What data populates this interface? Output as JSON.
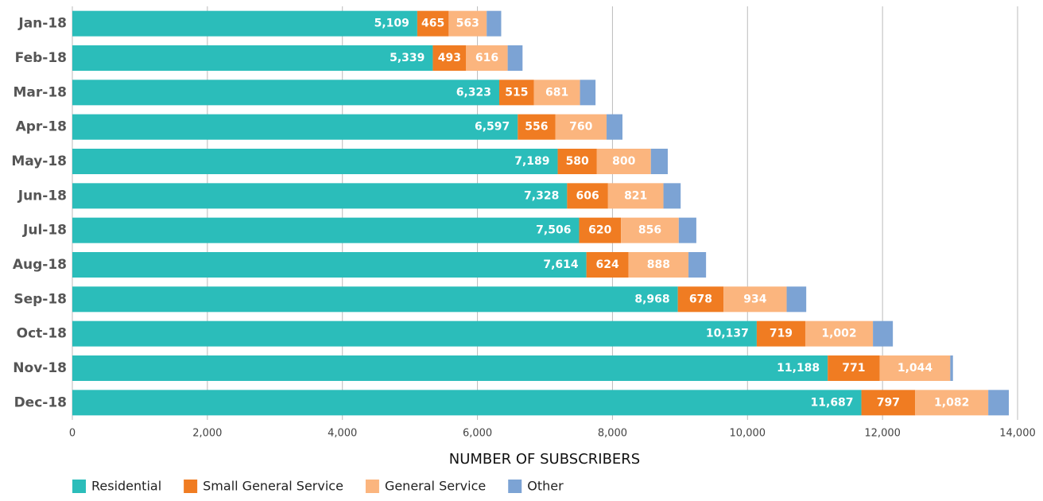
{
  "chart_data": {
    "type": "stacked_barh",
    "categories": [
      "Jan-18",
      "Feb-18",
      "Mar-18",
      "Apr-18",
      "May-18",
      "Jun-18",
      "Jul-18",
      "Aug-18",
      "Sep-18",
      "Oct-18",
      "Nov-18",
      "Dec-18"
    ],
    "series": [
      {
        "name": "Residential",
        "color": "#2bbdba",
        "values": [
          5109,
          5339,
          6323,
          6597,
          7189,
          7328,
          7506,
          7614,
          8968,
          10137,
          11188,
          11687
        ],
        "value_labels": [
          "5,109",
          "5,339",
          "6,323",
          "6,597",
          "7,189",
          "7,328",
          "7,506",
          "7,614",
          "8,968",
          "10,137",
          "11,188",
          "11,687"
        ]
      },
      {
        "name": "Small General Service",
        "color": "#f07c22",
        "values": [
          465,
          493,
          515,
          556,
          580,
          606,
          620,
          624,
          678,
          719,
          771,
          797
        ]
      },
      {
        "name": "General Service",
        "color": "#fbb57e",
        "values": [
          563,
          616,
          681,
          760,
          800,
          821,
          856,
          888,
          934,
          1002,
          1044,
          1082
        ],
        "value_labels": [
          "563",
          "616",
          "681",
          "760",
          "800",
          "821",
          "856",
          "888",
          "934",
          "1,002",
          "1,044",
          "1,082"
        ]
      },
      {
        "name": "Other",
        "color": "#7ca3d4",
        "values": [
          215,
          220,
          230,
          235,
          250,
          255,
          260,
          260,
          290,
          295,
          40,
          305
        ]
      }
    ],
    "xlabel": "NUMBER OF SUBSCRIBERS",
    "xlim": [
      0,
      14000
    ],
    "xticks": [
      0,
      {
        "value": 2000,
        "label": "2,000"
      },
      {
        "value": 4000,
        "label": "4,000"
      },
      {
        "value": 6000,
        "label": "6,000"
      },
      {
        "value": 8000,
        "label": "8,000"
      },
      {
        "value": 10000,
        "label": "10,000"
      },
      {
        "value": 12000,
        "label": "12,000"
      },
      {
        "value": 14000,
        "label": "14,000"
      }
    ],
    "grid": true,
    "legend": "bottom"
  }
}
